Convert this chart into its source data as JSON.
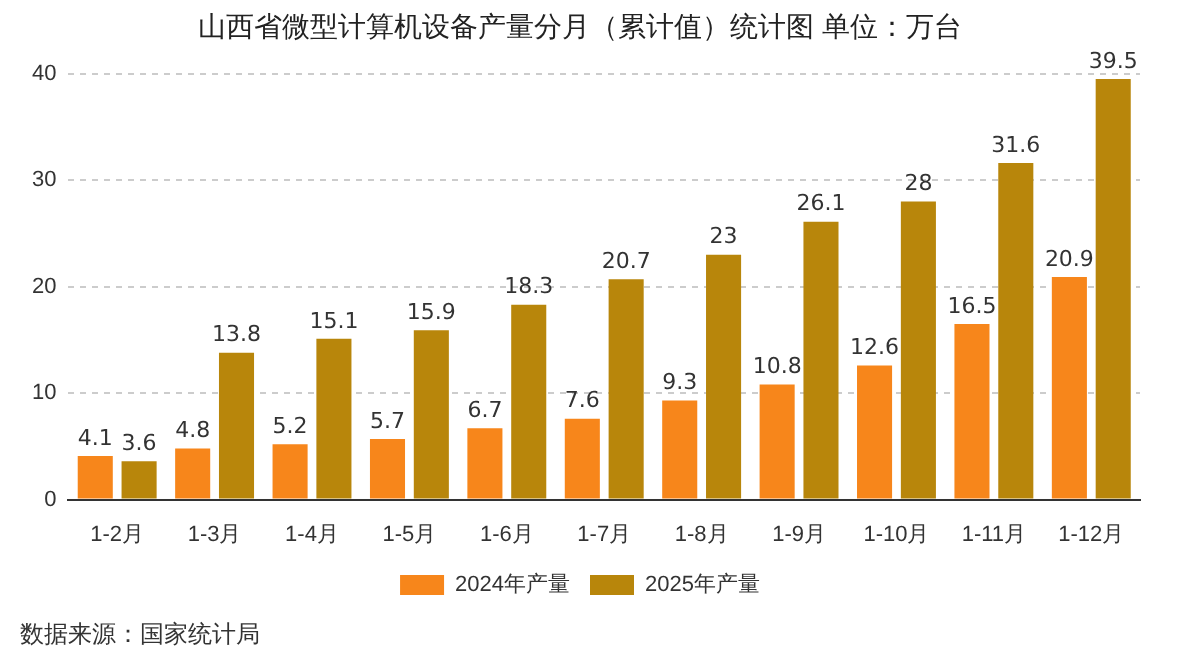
{
  "chart_data": {
    "type": "bar",
    "title": "山西省微型计算机设备产量分月（累计值）统计图 单位：万台",
    "categories": [
      "1-2月",
      "1-3月",
      "1-4月",
      "1-5月",
      "1-6月",
      "1-7月",
      "1-8月",
      "1-9月",
      "1-10月",
      "1-11月",
      "1-12月"
    ],
    "series": [
      {
        "name": "2024年产量",
        "color": "#f7861b",
        "values": [
          4.1,
          4.8,
          5.2,
          5.7,
          6.7,
          7.6,
          9.3,
          10.8,
          12.6,
          16.5,
          20.9
        ]
      },
      {
        "name": "2025年产量",
        "color": "#b8860b",
        "values": [
          3.6,
          13.8,
          15.1,
          15.9,
          18.3,
          20.7,
          23,
          26.1,
          28,
          31.6,
          39.5
        ]
      }
    ],
    "ylim": [
      0,
      40
    ],
    "yticks": [
      0,
      10,
      20,
      30,
      40
    ],
    "grid": "y",
    "legend": "bottom",
    "data_labels": true,
    "annotations": [
      "数据来源：国家统计局"
    ]
  }
}
